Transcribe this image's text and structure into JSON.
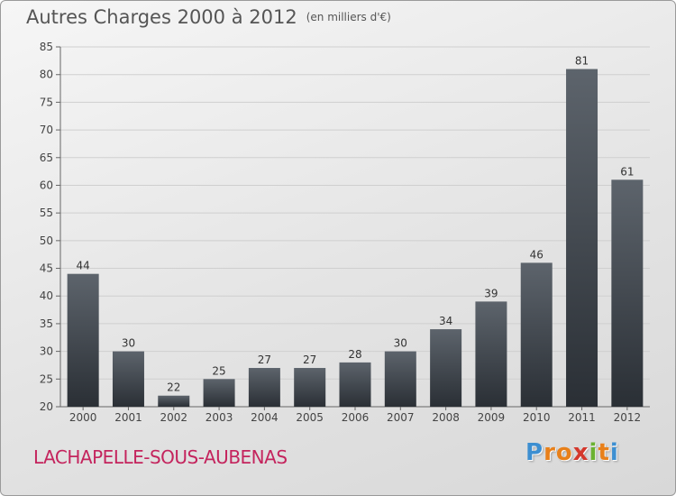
{
  "title": "Autres Charges 2000 à 2012",
  "subtitle": "(en milliers d'€)",
  "commune": "LACHAPELLE-SOUS-AUBENAS",
  "logo": {
    "letters": [
      "P",
      "r",
      "o",
      "x",
      "i",
      "t",
      "i"
    ],
    "colors": [
      "#3d8fd1",
      "#e8801a",
      "#e8801a",
      "#d4382c",
      "#6bb232",
      "#e8801a",
      "#3d8fd1"
    ]
  },
  "chart_data": {
    "type": "bar",
    "title": "Autres Charges 2000 à 2012",
    "subtitle": "(en milliers d'€)",
    "categories": [
      "2000",
      "2001",
      "2002",
      "2003",
      "2004",
      "2005",
      "2006",
      "2007",
      "2008",
      "2009",
      "2010",
      "2011",
      "2012"
    ],
    "values": [
      44,
      30,
      22,
      25,
      27,
      27,
      28,
      30,
      34,
      39,
      46,
      81,
      61
    ],
    "ylim": [
      20,
      85
    ],
    "yticks": [
      20,
      25,
      30,
      35,
      40,
      45,
      50,
      55,
      60,
      65,
      70,
      75,
      80,
      85
    ],
    "grid": true,
    "colors": {
      "bar_top": "#5d646c",
      "bar_bottom": "#2a2f35",
      "grid": "#cfcfcf"
    }
  }
}
